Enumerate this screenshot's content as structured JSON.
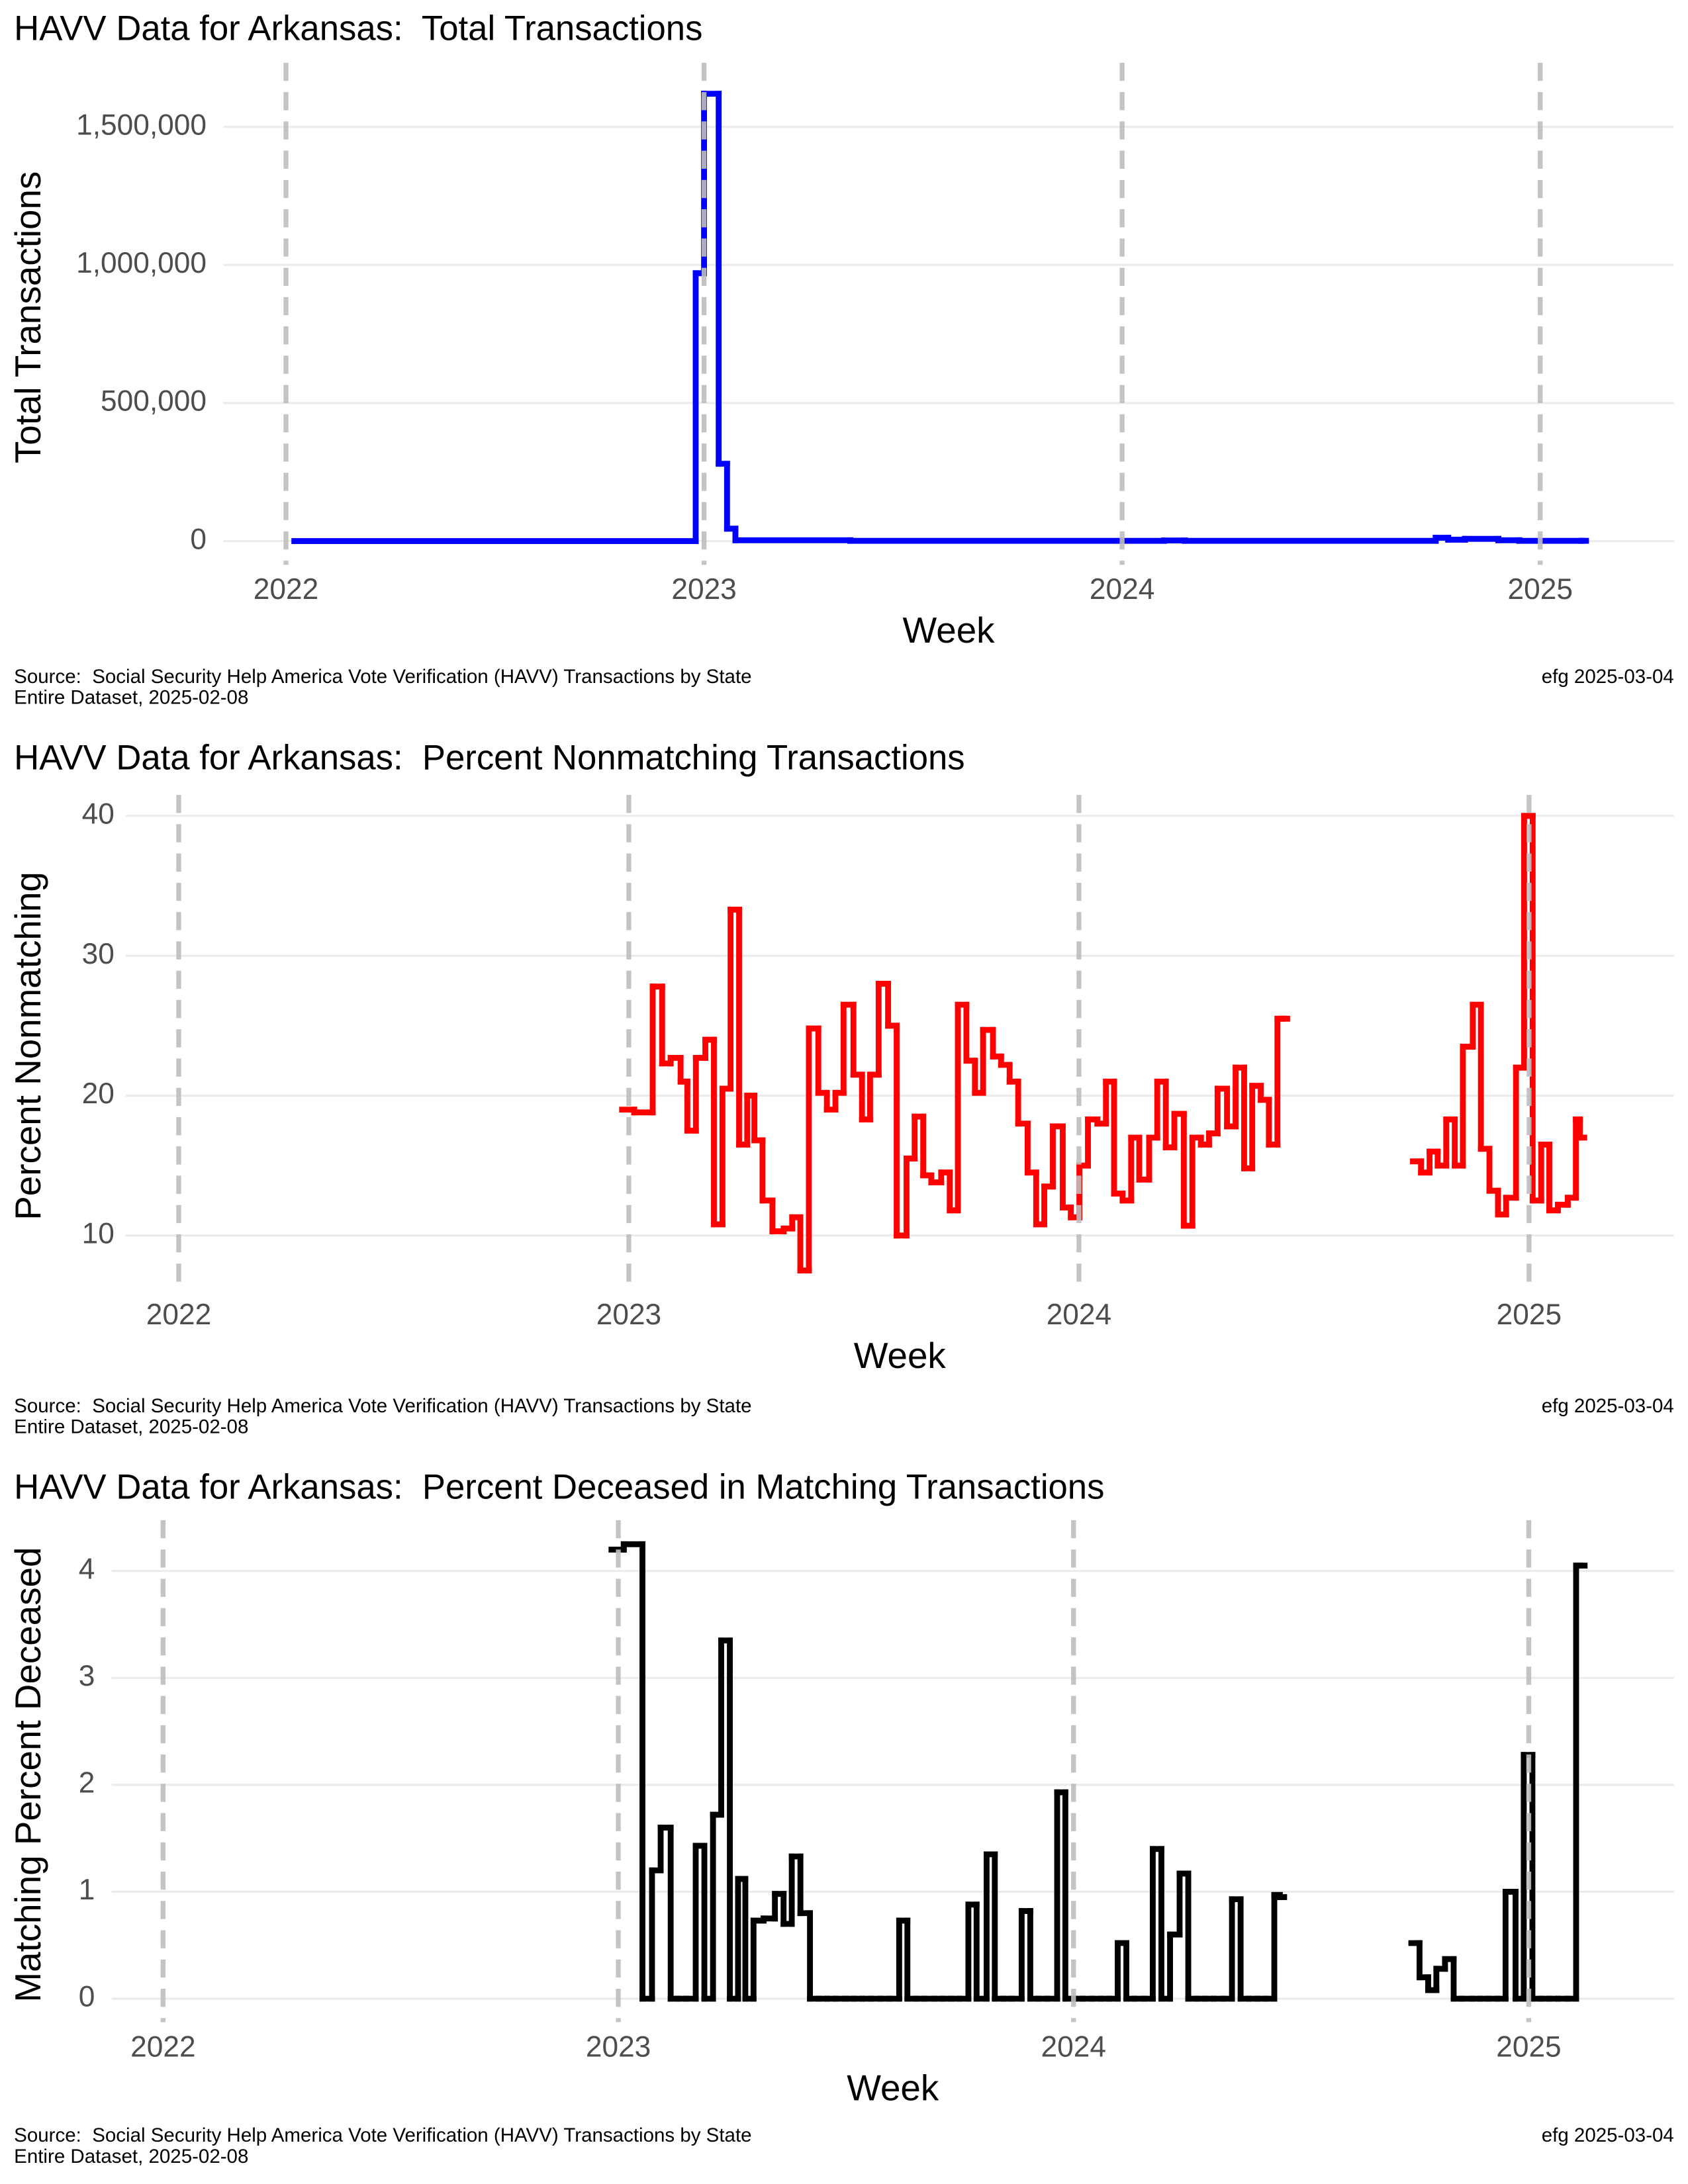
{
  "chart_data": [
    {
      "type": "line",
      "step": true,
      "title": "HAVV Data for Arkansas:  Total Transactions",
      "xlabel": "Week",
      "ylabel": "Total Transactions",
      "color": "#0000ff",
      "x": [
        2022.02,
        2022.98,
        2023.0,
        2023.035,
        2023.055,
        2023.075,
        2023.35,
        2024.1,
        2024.15,
        2024.75,
        2024.78,
        2024.82,
        2024.9,
        2024.95,
        2025.1
      ],
      "values": [
        0,
        970000,
        1620000,
        280000,
        45000,
        3000,
        1000,
        2000,
        1000,
        12000,
        5000,
        8000,
        3000,
        1000,
        1000
      ],
      "xlim": [
        2021.85,
        2025.32
      ],
      "xticks": [
        2022,
        2023,
        2024,
        2025
      ],
      "ylim": [
        -86000,
        1707000
      ],
      "yticks": [
        0,
        {
          "value": 500000,
          "label": "500,000"
        },
        {
          "value": 1000000,
          "label": "1,000,000"
        },
        {
          "value": 1500000,
          "label": "1,500,000"
        }
      ],
      "grid": true,
      "caption": [
        "Source:  Social Security Help America Vote Verification (HAVV) Transactions by State",
        "Entire Dataset, 2025-02-08"
      ],
      "tag": "efg 2025-03-04"
    },
    {
      "type": "line",
      "step": true,
      "title": "HAVV Data for Arkansas:  Percent Nonmatching Transactions",
      "xlabel": "Week",
      "ylabel": "Percent Nonmatching",
      "color": "#ff0000",
      "x": [
        2022.985,
        2023.012,
        2023.053,
        2023.074,
        2023.093,
        2023.115,
        2023.13,
        2023.149,
        2023.17,
        2023.189,
        2023.208,
        2023.226,
        2023.245,
        2023.263,
        2023.279,
        2023.297,
        2023.319,
        2023.344,
        2023.363,
        2023.381,
        2023.4,
        2023.421,
        2023.44,
        2023.459,
        2023.477,
        2023.499,
        2023.518,
        2023.536,
        2023.555,
        2023.576,
        2023.595,
        2023.617,
        2023.635,
        2023.654,
        2023.672,
        2023.694,
        2023.713,
        2023.731,
        2023.75,
        2023.769,
        2023.787,
        2023.809,
        2023.827,
        2023.846,
        2023.865,
        2023.886,
        2023.905,
        2023.923,
        2023.942,
        2023.964,
        2023.982,
        2024.001,
        2024.02,
        2024.041,
        2024.06,
        2024.078,
        2024.097,
        2024.116,
        2024.134,
        2024.156,
        2024.174,
        2024.193,
        2024.212,
        2024.233,
        2024.252,
        2024.271,
        2024.289,
        2024.308,
        2024.329,
        2024.348,
        2024.367,
        2024.385,
        2024.404,
        2024.422,
        2024.441,
        2024.453,
        2024.6,
        2024.742,
        2024.76,
        2024.779,
        2024.797,
        2024.816,
        2024.835,
        2024.853,
        2024.875,
        2024.893,
        2024.912,
        2024.931,
        2024.949,
        2024.971,
        2024.989,
        2025.008,
        2025.027,
        2025.045,
        2025.064,
        2025.086,
        2025.104,
        2025.113
      ],
      "values": [
        19,
        18.8,
        27.8,
        22.3,
        22.7,
        21,
        17.5,
        22.7,
        24,
        10.8,
        20.5,
        33.3,
        16.5,
        20,
        16.8,
        12.5,
        10.3,
        10.5,
        11.3,
        7.5,
        24.8,
        20.2,
        19,
        20.2,
        26.5,
        21.5,
        18.3,
        21.5,
        28,
        25,
        10,
        15.5,
        18.5,
        14.3,
        13.8,
        14.5,
        11.8,
        26.5,
        22.5,
        20.2,
        24.7,
        22.8,
        22.2,
        21,
        18,
        14.5,
        10.8,
        13.5,
        17.8,
        12,
        11.3,
        15,
        18.3,
        18,
        21,
        13,
        12.5,
        17,
        14,
        17,
        21,
        16.3,
        18.7,
        10.7,
        17,
        16.5,
        17.3,
        20.5,
        17.8,
        22,
        14.8,
        20.7,
        19.7,
        16.5,
        25.5,
        25.5,
        null,
        15.3,
        14.5,
        16,
        15,
        18.3,
        15,
        23.5,
        26.5,
        16.2,
        13.2,
        11.5,
        12.7,
        22,
        40,
        12.5,
        16.5,
        11.8,
        12.2,
        12.7,
        18.3,
        17
      ],
      "xlim": [
        2021.882,
        2025.322
      ],
      "xticks": [
        2022,
        2023,
        2024,
        2025
      ],
      "ylim": [
        6.1,
        41
      ],
      "yticks": [
        10,
        20,
        30,
        40
      ],
      "grid": true,
      "caption": [
        "Source:  Social Security Help America Vote Verification (HAVV) Transactions by State",
        "Entire Dataset, 2025-02-08"
      ],
      "tag": "efg 2025-03-04"
    },
    {
      "type": "line",
      "step": true,
      "title": "HAVV Data for Arkansas:  Percent Deceased in Matching Transactions",
      "xlabel": "Week",
      "ylabel": "Matching Percent Deceased",
      "color": "#000000",
      "x": [
        2022.985,
        2023.012,
        2023.053,
        2023.074,
        2023.093,
        2023.115,
        2023.13,
        2023.149,
        2023.17,
        2023.189,
        2023.208,
        2023.226,
        2023.245,
        2023.263,
        2023.279,
        2023.297,
        2023.319,
        2023.344,
        2023.363,
        2023.381,
        2023.4,
        2023.421,
        2023.44,
        2023.459,
        2023.477,
        2023.499,
        2023.518,
        2023.536,
        2023.555,
        2023.576,
        2023.595,
        2023.617,
        2023.635,
        2023.654,
        2023.672,
        2023.694,
        2023.713,
        2023.731,
        2023.75,
        2023.769,
        2023.787,
        2023.809,
        2023.827,
        2023.846,
        2023.865,
        2023.886,
        2023.905,
        2023.923,
        2023.942,
        2023.964,
        2023.982,
        2024.001,
        2024.02,
        2024.041,
        2024.06,
        2024.078,
        2024.097,
        2024.116,
        2024.134,
        2024.156,
        2024.174,
        2024.193,
        2024.212,
        2024.233,
        2024.252,
        2024.271,
        2024.289,
        2024.308,
        2024.329,
        2024.348,
        2024.367,
        2024.385,
        2024.404,
        2024.422,
        2024.441,
        2024.453,
        2024.6,
        2024.742,
        2024.76,
        2024.779,
        2024.797,
        2024.816,
        2024.835,
        2024.853,
        2024.875,
        2024.893,
        2024.912,
        2024.931,
        2024.949,
        2024.971,
        2024.989,
        2025.008,
        2025.027,
        2025.045,
        2025.064,
        2025.086,
        2025.104,
        2025.113
      ],
      "values": [
        4.2,
        4.25,
        0,
        1.2,
        1.6,
        0,
        0,
        0,
        1.43,
        0,
        1.72,
        3.35,
        0,
        1.12,
        0,
        0.73,
        0.75,
        0.98,
        0.7,
        1.33,
        0.8,
        0,
        0,
        0,
        0,
        0,
        0,
        0,
        0,
        0,
        0,
        0.73,
        0,
        0,
        0,
        0,
        0,
        0,
        0,
        0.88,
        0,
        1.35,
        0,
        0,
        0,
        0.82,
        0,
        0,
        0,
        1.93,
        0,
        0,
        0,
        0,
        0,
        0,
        0.52,
        0,
        0,
        0,
        1.4,
        0,
        0.6,
        1.17,
        0,
        0,
        0,
        0,
        0,
        0.93,
        0,
        0,
        0,
        0,
        0.97,
        0.95,
        null,
        0.52,
        0.2,
        0.08,
        0.28,
        0.37,
        0,
        0,
        0,
        0,
        0,
        0,
        1.0,
        0,
        2.28,
        0,
        0,
        0,
        0,
        0,
        4.05,
        4.05
      ],
      "xlim": [
        2021.887,
        2025.319
      ],
      "xticks": [
        2022,
        2023,
        2024,
        2025
      ],
      "ylim": [
        -0.22,
        4.41
      ],
      "yticks": [
        0,
        1,
        2,
        3,
        4
      ],
      "grid": true,
      "caption": [
        "Source:  Social Security Help America Vote Verification (HAVV) Transactions by State",
        "Entire Dataset, 2025-02-08"
      ],
      "tag": "efg 2025-03-04"
    }
  ]
}
